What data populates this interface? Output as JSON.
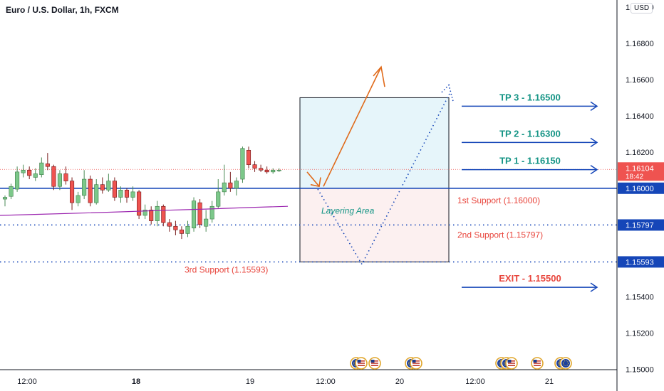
{
  "header": {
    "symbol_title": "Euro / U.S. Dollar, 1h, FXCM",
    "currency": "USD"
  },
  "colors": {
    "bull": "#26a69a",
    "bull_fill": "#7cc88a",
    "bear": "#ef5350",
    "line_blue": "#1546b8",
    "teal_text": "#149485",
    "red_text": "#e8453c",
    "orange": "#e06a1a",
    "ma": "#9c27b0"
  },
  "chart_data": {
    "type": "candlestick",
    "ylim": [
      1.1499,
      1.1702
    ],
    "y_ticks": [
      "1.17000",
      "1.16800",
      "1.16600",
      "1.16400",
      "1.16200",
      "1.15400",
      "1.15200",
      "1.15000"
    ],
    "x_ticks": [
      {
        "label": "12:00",
        "bold": false
      },
      {
        "label": "18",
        "bold": true
      },
      {
        "label": "19",
        "bold": false
      },
      {
        "label": "12:00",
        "bold": false
      },
      {
        "label": "20",
        "bold": false
      },
      {
        "label": "12:00",
        "bold": false
      },
      {
        "label": "21",
        "bold": false
      }
    ],
    "candles": [
      {
        "o": 1.1594,
        "c": 1.1595,
        "h": 1.1596,
        "l": 1.159
      },
      {
        "o": 1.15955,
        "c": 1.1601,
        "h": 1.16025,
        "l": 1.1594
      },
      {
        "o": 1.15995,
        "c": 1.1609,
        "h": 1.1612,
        "l": 1.1598
      },
      {
        "o": 1.16085,
        "c": 1.161,
        "h": 1.1613,
        "l": 1.1606
      },
      {
        "o": 1.161,
        "c": 1.1607,
        "h": 1.1612,
        "l": 1.1605
      },
      {
        "o": 1.1606,
        "c": 1.1608,
        "h": 1.1611,
        "l": 1.1604
      },
      {
        "o": 1.16075,
        "c": 1.1614,
        "h": 1.1617,
        "l": 1.1606
      },
      {
        "o": 1.16135,
        "c": 1.1612,
        "h": 1.16195,
        "l": 1.161
      },
      {
        "o": 1.1612,
        "c": 1.1601,
        "h": 1.1613,
        "l": 1.1599
      },
      {
        "o": 1.1601,
        "c": 1.1608,
        "h": 1.161,
        "l": 1.1599
      },
      {
        "o": 1.1608,
        "c": 1.1604,
        "h": 1.1612,
        "l": 1.1602
      },
      {
        "o": 1.1604,
        "c": 1.1592,
        "h": 1.1606,
        "l": 1.1588
      },
      {
        "o": 1.1592,
        "c": 1.1596,
        "h": 1.1598,
        "l": 1.159
      },
      {
        "o": 1.1596,
        "c": 1.1605,
        "h": 1.161,
        "l": 1.1594
      },
      {
        "o": 1.1605,
        "c": 1.1592,
        "h": 1.1607,
        "l": 1.159
      },
      {
        "o": 1.1592,
        "c": 1.1602,
        "h": 1.1605,
        "l": 1.1591
      },
      {
        "o": 1.1602,
        "c": 1.1599,
        "h": 1.1606,
        "l": 1.1597
      },
      {
        "o": 1.1599,
        "c": 1.1604,
        "h": 1.1608,
        "l": 1.1598
      },
      {
        "o": 1.1604,
        "c": 1.1595,
        "h": 1.1606,
        "l": 1.1593
      },
      {
        "o": 1.1595,
        "c": 1.1599,
        "h": 1.1601,
        "l": 1.1592
      },
      {
        "o": 1.1599,
        "c": 1.1595,
        "h": 1.16,
        "l": 1.1592
      },
      {
        "o": 1.1595,
        "c": 1.1598,
        "h": 1.1601,
        "l": 1.1593
      },
      {
        "o": 1.1598,
        "c": 1.1585,
        "h": 1.1599,
        "l": 1.1583
      },
      {
        "o": 1.1585,
        "c": 1.1588,
        "h": 1.1591,
        "l": 1.1583
      },
      {
        "o": 1.1588,
        "c": 1.1582,
        "h": 1.159,
        "l": 1.158
      },
      {
        "o": 1.1582,
        "c": 1.159,
        "h": 1.1593,
        "l": 1.1579
      },
      {
        "o": 1.159,
        "c": 1.1581,
        "h": 1.1591,
        "l": 1.1579
      },
      {
        "o": 1.1581,
        "c": 1.1579,
        "h": 1.1583,
        "l": 1.1576
      },
      {
        "o": 1.1579,
        "c": 1.1577,
        "h": 1.1582,
        "l": 1.1574
      },
      {
        "o": 1.1577,
        "c": 1.1575,
        "h": 1.1579,
        "l": 1.1572
      },
      {
        "o": 1.1575,
        "c": 1.1579,
        "h": 1.1582,
        "l": 1.1573
      },
      {
        "o": 1.1578,
        "c": 1.1593,
        "h": 1.1595,
        "l": 1.1576
      },
      {
        "o": 1.1592,
        "c": 1.158,
        "h": 1.1594,
        "l": 1.1578
      },
      {
        "o": 1.1579,
        "c": 1.1583,
        "h": 1.1588,
        "l": 1.1576
      },
      {
        "o": 1.1583,
        "c": 1.159,
        "h": 1.1593,
        "l": 1.1581
      },
      {
        "o": 1.159,
        "c": 1.1598,
        "h": 1.1605,
        "l": 1.1589
      },
      {
        "o": 1.1598,
        "c": 1.1603,
        "h": 1.1613,
        "l": 1.1596
      },
      {
        "o": 1.1603,
        "c": 1.16,
        "h": 1.1609,
        "l": 1.1598
      },
      {
        "o": 1.16,
        "c": 1.1604,
        "h": 1.1606,
        "l": 1.1596
      },
      {
        "o": 1.1605,
        "c": 1.1622,
        "h": 1.1623,
        "l": 1.1603
      },
      {
        "o": 1.1621,
        "c": 1.1613,
        "h": 1.1623,
        "l": 1.1611
      },
      {
        "o": 1.1613,
        "c": 1.1611,
        "h": 1.1615,
        "l": 1.1609
      },
      {
        "o": 1.1611,
        "c": 1.161,
        "h": 1.1613,
        "l": 1.1609
      },
      {
        "o": 1.161,
        "c": 1.1609,
        "h": 1.1612,
        "l": 1.1608
      },
      {
        "o": 1.1609,
        "c": 1.161,
        "h": 1.1611,
        "l": 1.1608
      },
      {
        "o": 1.161,
        "c": 1.161,
        "h": 1.1611,
        "l": 1.1609
      }
    ],
    "moving_average": [
      1.1585,
      1.15856,
      1.15863,
      1.1587,
      1.15878,
      1.15885,
      1.15893,
      1.159
    ],
    "price_levels": [
      {
        "price": 1.16,
        "label": "1.16000",
        "style": "solid"
      },
      {
        "price": 1.15797,
        "label": "1.15797",
        "style": "dotted"
      },
      {
        "price": 1.15593,
        "label": "1.15593",
        "style": "dotted"
      }
    ],
    "last_price": {
      "price": 1.16104,
      "label": "1.16104",
      "countdown": "18:42"
    },
    "annotations": {
      "targets": [
        {
          "price": 1.165,
          "text": "TP 3 - 1.16500"
        },
        {
          "price": 1.163,
          "text": "TP 2 - 1.16300"
        },
        {
          "price": 1.1615,
          "text": "TP 1 - 1.16150"
        }
      ],
      "supports": [
        {
          "price": 1.16,
          "text": "1st Support (1.16000)"
        },
        {
          "price": 1.15797,
          "text": "2nd Support (1.15797)"
        },
        {
          "price": 1.15593,
          "text": "3rd Support (1.15593)"
        }
      ],
      "exit": {
        "price": 1.155,
        "text": "EXIT - 1.15500"
      },
      "layering_area": "Layering Area",
      "position_box": {
        "top": 1.165,
        "entry": 1.16,
        "bottom": 1.15593
      }
    },
    "event_groups": [
      {
        "flags": [
          "eu",
          "us"
        ]
      },
      {
        "flags": [
          "us"
        ]
      },
      {
        "flags": [
          "eu",
          "us"
        ]
      },
      {
        "flags": [
          "eu",
          "eu",
          "us"
        ]
      },
      {
        "flags": [
          "us"
        ]
      },
      {
        "flags": [
          "eu",
          "eu"
        ]
      }
    ]
  }
}
